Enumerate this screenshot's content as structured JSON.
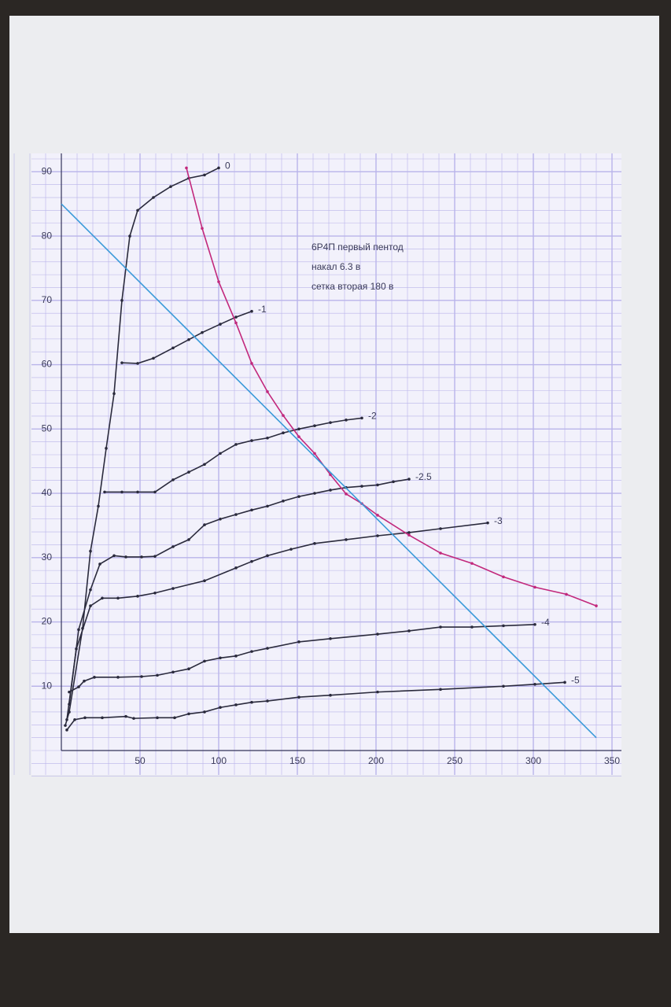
{
  "chart_data": {
    "type": "line",
    "annotations": [
      "6Р4П первый пентод",
      "накал 6.3 в",
      "сетка вторая 180 в"
    ],
    "xlim": [
      0,
      350
    ],
    "ylim": [
      0,
      92
    ],
    "xticks": [
      50,
      100,
      150,
      200,
      250,
      300,
      350
    ],
    "yticks": [
      10,
      20,
      30,
      40,
      50,
      60,
      70,
      80,
      90
    ],
    "grid": true,
    "grid_color": "#b9b4ea",
    "series": [
      {
        "name": "0",
        "color": "#2a2a3c",
        "markers": true,
        "x": [
          2.5,
          5,
          13.5,
          18.5,
          23.5,
          28.5,
          33.5,
          38.5,
          43.5,
          48.5,
          58.5,
          69.5,
          81,
          91,
          100
        ],
        "values": [
          3.9,
          6,
          19,
          31,
          38,
          47,
          55.5,
          70,
          80,
          84,
          86,
          87.7,
          89,
          89.5,
          90.6
        ]
      },
      {
        "name": "-1",
        "color": "#2a2a3c",
        "markers": true,
        "x": [
          38.5,
          48.5,
          58.5,
          71,
          81,
          89.5,
          101,
          111,
          121
        ],
        "values": [
          60.3,
          60.2,
          61,
          62.6,
          63.9,
          65,
          66.3,
          67.4,
          68.3
        ]
      },
      {
        "name": "-2",
        "color": "#2a2a3c",
        "markers": true,
        "x": [
          27.5,
          38.5,
          48.5,
          59.5,
          71,
          81,
          91,
          101,
          111,
          121,
          131,
          141,
          151,
          161,
          171,
          181,
          191
        ],
        "values": [
          40.2,
          40.2,
          40.2,
          40.2,
          42.1,
          43.3,
          44.5,
          46.2,
          47.6,
          48.2,
          48.6,
          49.4,
          50,
          50.5,
          51,
          51.4,
          51.7
        ]
      },
      {
        "name": "-2.5",
        "color": "#2a2a3c",
        "markers": true,
        "x": [
          5,
          11,
          18.5,
          24.5,
          33.5,
          41,
          51,
          59.5,
          71,
          81,
          91,
          101,
          111,
          121,
          131,
          141,
          151,
          161,
          171,
          181,
          191,
          201,
          211,
          221
        ],
        "values": [
          7.2,
          18.8,
          25,
          29,
          30.3,
          30.1,
          30.1,
          30.2,
          31.7,
          32.8,
          35.1,
          36,
          36.7,
          37.4,
          38,
          38.8,
          39.5,
          40,
          40.5,
          40.9,
          41.1,
          41.3,
          41.8,
          42.2
        ]
      },
      {
        "name": "-3",
        "color": "#2a2a3c",
        "markers": true,
        "x": [
          3.5,
          9.5,
          18.5,
          26,
          36,
          48.5,
          59.5,
          71,
          91,
          111,
          121,
          131,
          146,
          161,
          181,
          201,
          221,
          241,
          271
        ],
        "values": [
          4.8,
          15.8,
          22.5,
          23.7,
          23.7,
          24,
          24.5,
          25.2,
          26.4,
          28.4,
          29.4,
          30.3,
          31.3,
          32.2,
          32.8,
          33.4,
          33.9,
          34.5,
          35.4
        ]
      },
      {
        "name": "-4",
        "color": "#2a2a3c",
        "markers": true,
        "x": [
          5,
          11,
          14.5,
          21,
          36,
          51,
          61,
          71,
          81,
          91,
          101,
          111,
          121,
          131,
          151,
          171,
          201,
          221,
          241,
          261,
          281,
          301
        ],
        "values": [
          9.1,
          9.9,
          10.8,
          11.4,
          11.4,
          11.5,
          11.7,
          12.2,
          12.7,
          13.9,
          14.4,
          14.7,
          15.4,
          15.9,
          16.9,
          17.4,
          18.1,
          18.6,
          19.2,
          19.2,
          19.4,
          19.6
        ]
      },
      {
        "name": "-5",
        "color": "#2a2a3c",
        "markers": true,
        "x": [
          3.5,
          8.5,
          15,
          26,
          41,
          46,
          61,
          72,
          81,
          91,
          101,
          111,
          121,
          131,
          151,
          171,
          201,
          241,
          281,
          301,
          320
        ],
        "values": [
          3.2,
          4.8,
          5.1,
          5.1,
          5.3,
          5,
          5.1,
          5.1,
          5.7,
          6,
          6.7,
          7.1,
          7.5,
          7.7,
          8.3,
          8.6,
          9.1,
          9.5,
          10,
          10.3,
          10.6
        ]
      },
      {
        "color": "#c2287c",
        "markers": true,
        "x": [
          79.5,
          89.5,
          100,
          111,
          121,
          131,
          141,
          151,
          161,
          171,
          181,
          191,
          201,
          221,
          241,
          261,
          281,
          301,
          321,
          340
        ],
        "values": [
          90.6,
          81.2,
          72.9,
          66.5,
          60.2,
          55.8,
          52.1,
          48.8,
          46.2,
          42.9,
          39.9,
          38.4,
          36.6,
          33.5,
          30.7,
          29.1,
          27,
          25.4,
          24.3,
          22.5
        ]
      },
      {
        "color": "#3a9ad9",
        "markers": false,
        "x": [
          0,
          340
        ],
        "values": [
          85,
          2
        ]
      }
    ]
  }
}
